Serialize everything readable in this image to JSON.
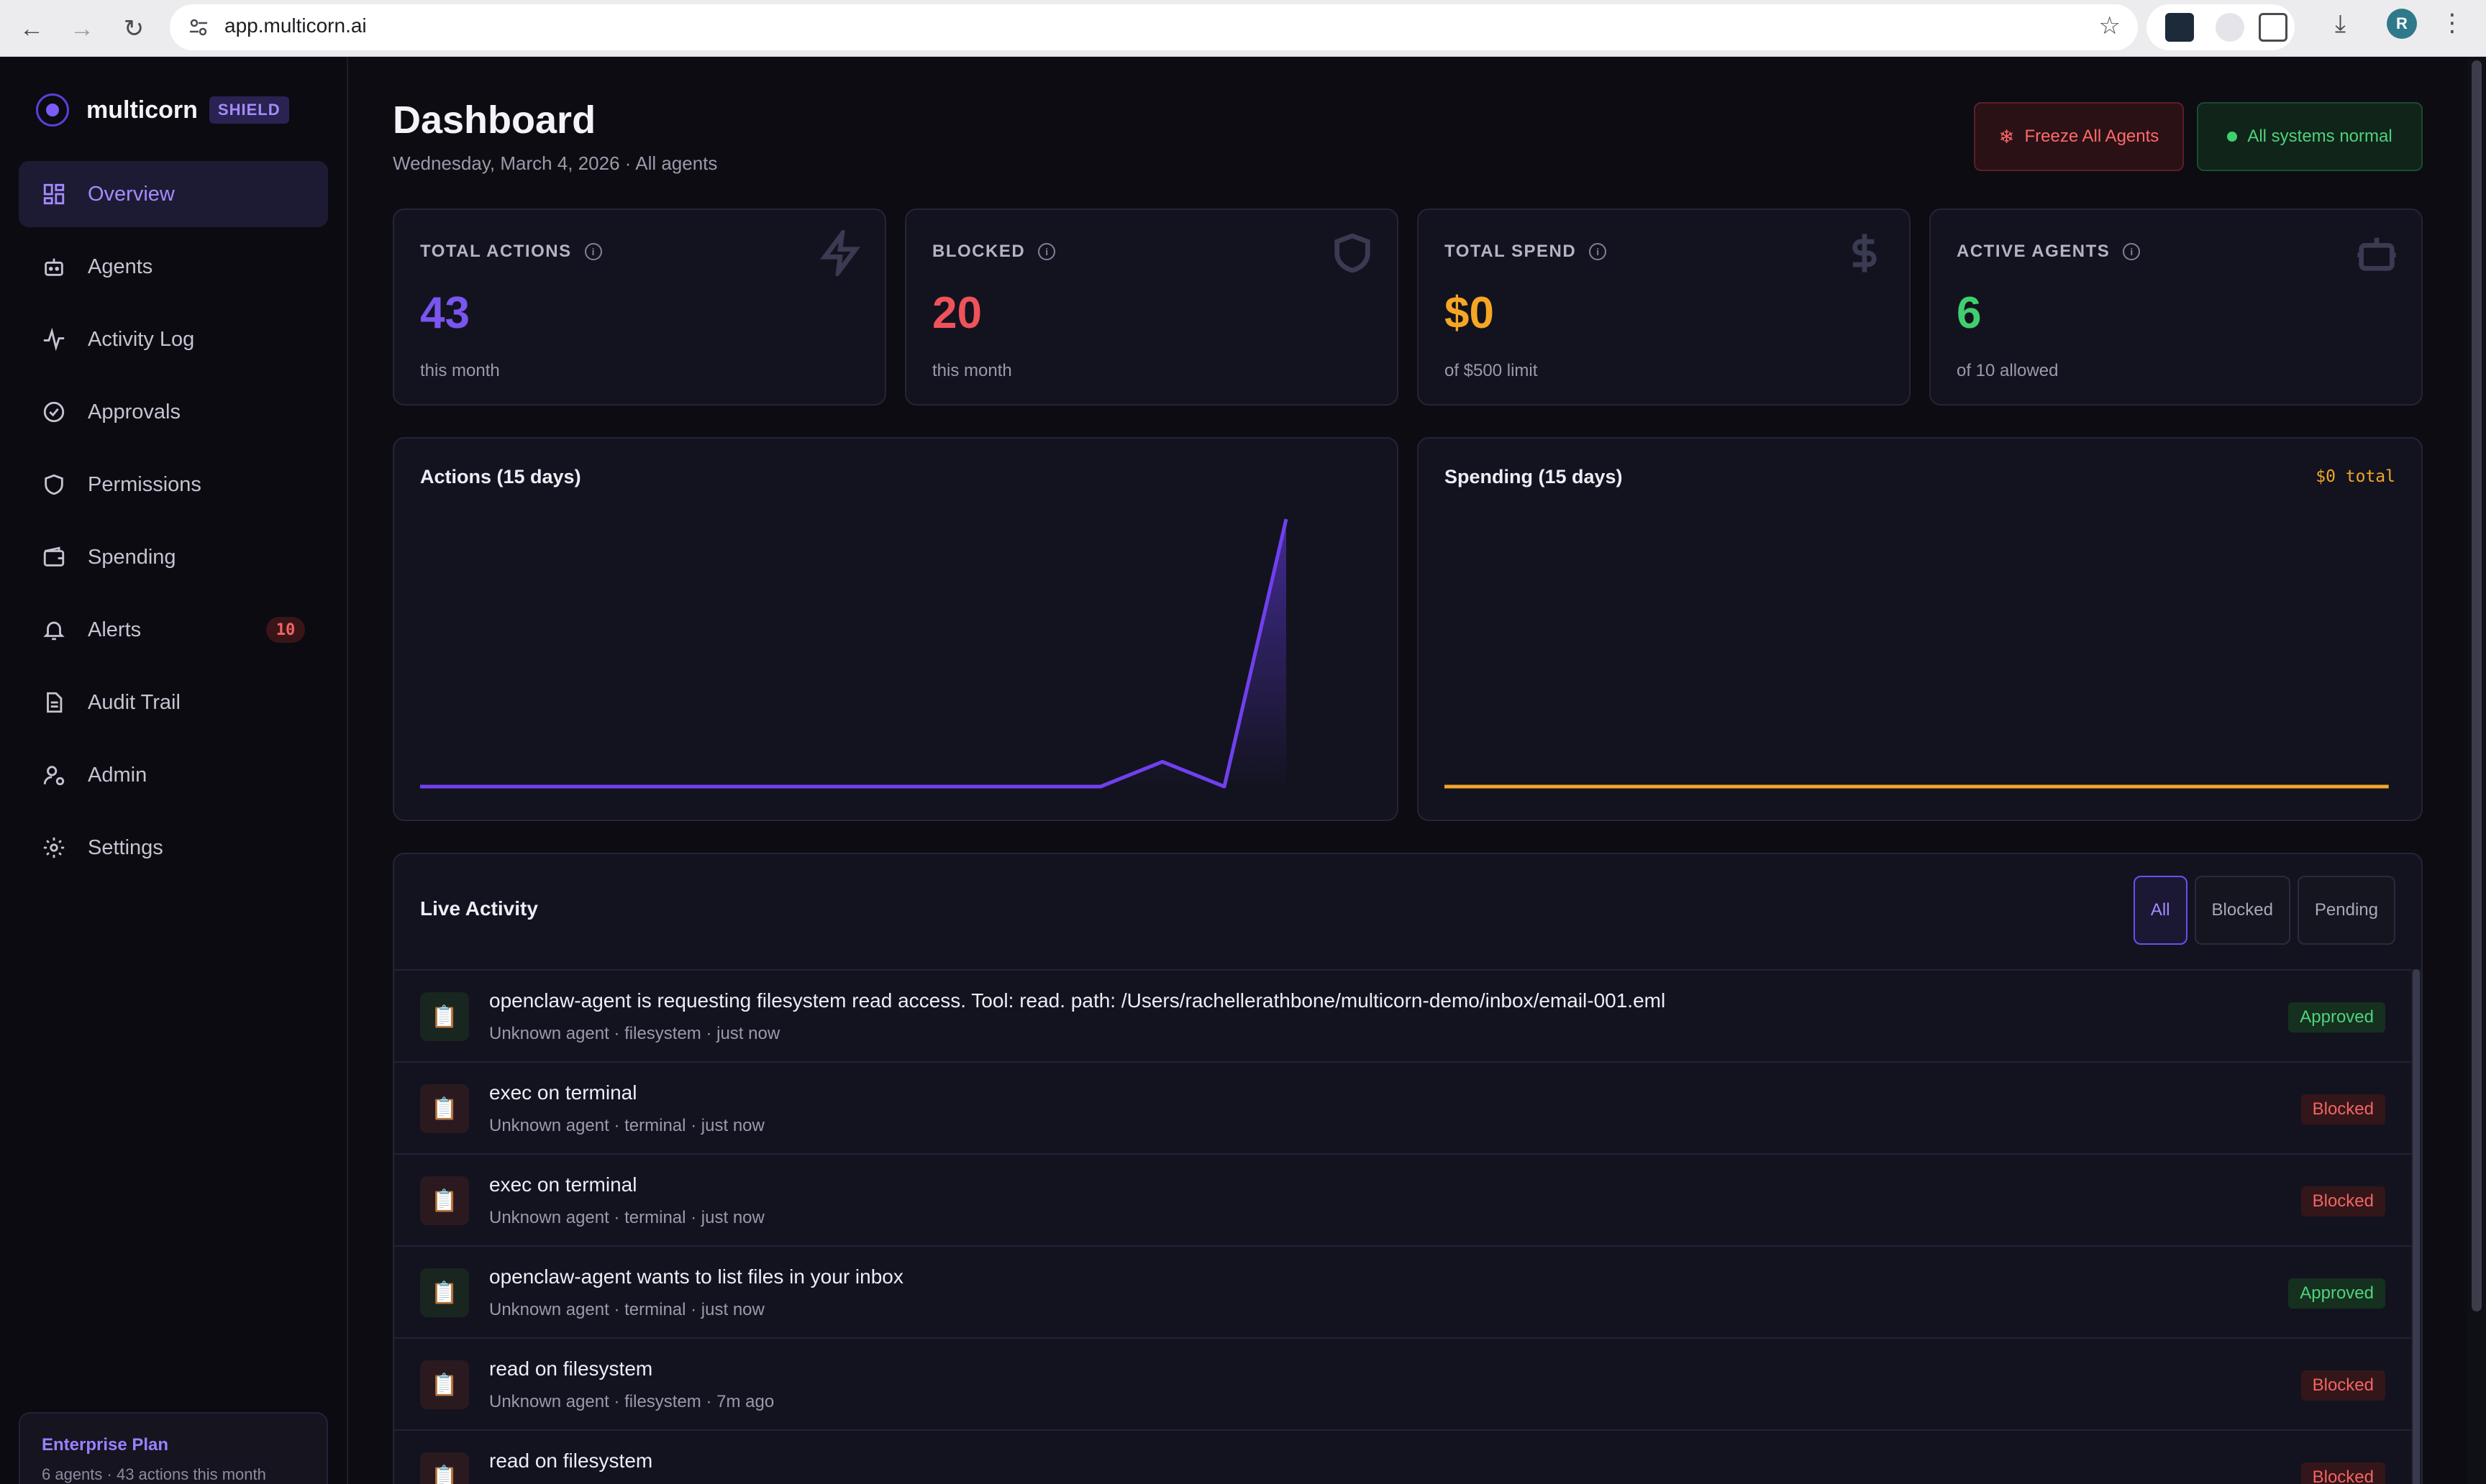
{
  "browser": {
    "url": "app.multicorn.ai",
    "profile_initial": "R"
  },
  "brand": {
    "name": "multicorn",
    "badge": "SHIELD"
  },
  "sidebar": {
    "items": [
      {
        "label": "Overview",
        "icon": "grid-icon",
        "active": true
      },
      {
        "label": "Agents",
        "icon": "robot-icon"
      },
      {
        "label": "Activity Log",
        "icon": "pulse-icon"
      },
      {
        "label": "Approvals",
        "icon": "check-circle-icon"
      },
      {
        "label": "Permissions",
        "icon": "shield-icon"
      },
      {
        "label": "Spending",
        "icon": "wallet-icon"
      },
      {
        "label": "Alerts",
        "icon": "bell-icon",
        "badge": "10"
      },
      {
        "label": "Audit Trail",
        "icon": "document-icon"
      },
      {
        "label": "Admin",
        "icon": "user-gear-icon"
      },
      {
        "label": "Settings",
        "icon": "gear-icon"
      }
    ],
    "plan": {
      "title": "Enterprise Plan",
      "subtitle": "6 agents · 43 actions this month"
    }
  },
  "header": {
    "title": "Dashboard",
    "subtitle": "Wednesday, March 4, 2026 · All agents",
    "freeze_label": "Freeze All Agents",
    "status_label": "All systems normal"
  },
  "stats": [
    {
      "label": "TOTAL ACTIONS",
      "value": "43",
      "sub": "this month",
      "color": "#7a55f0",
      "icon": "lightning-icon"
    },
    {
      "label": "BLOCKED",
      "value": "20",
      "sub": "this month",
      "color": "#f0525a",
      "icon": "shield-icon"
    },
    {
      "label": "TOTAL SPEND",
      "value": "$0",
      "sub": "of $500 limit",
      "color": "#f5a623",
      "icon": "dollar-icon"
    },
    {
      "label": "ACTIVE AGENTS",
      "value": "6",
      "sub": "of 10 allowed",
      "color": "#3fcf6e",
      "icon": "robot-icon"
    }
  ],
  "charts": {
    "actions": {
      "title": "Actions (15 days)"
    },
    "spending": {
      "title": "Spending (15 days)",
      "total": "$0 total"
    }
  },
  "chart_data": [
    {
      "type": "area",
      "title": "Actions (15 days)",
      "x": [
        1,
        2,
        3,
        4,
        5,
        6,
        7,
        8,
        9,
        10,
        11,
        12,
        13,
        14,
        15
      ],
      "values": [
        0,
        0,
        0,
        0,
        0,
        0,
        0,
        0,
        0,
        0,
        0,
        0,
        4,
        0,
        43
      ],
      "color": "#7040f0"
    },
    {
      "type": "area",
      "title": "Spending (15 days)",
      "x": [
        1,
        2,
        3,
        4,
        5,
        6,
        7,
        8,
        9,
        10,
        11,
        12,
        13,
        14,
        15
      ],
      "values": [
        0,
        0,
        0,
        0,
        0,
        0,
        0,
        0,
        0,
        0,
        0,
        0,
        0,
        0,
        0
      ],
      "color": "#f0a52c"
    }
  ],
  "activity": {
    "title": "Live Activity",
    "filters": [
      "All",
      "Blocked",
      "Pending"
    ],
    "active_filter": "All",
    "rows": [
      {
        "title": "openclaw-agent is requesting filesystem read access. Tool: read. path: /Users/rachellerathbone/multicorn-demo/inbox/email-001.eml",
        "meta": "Unknown agent · filesystem · just now",
        "status": "Approved"
      },
      {
        "title": "exec on terminal",
        "meta": "Unknown agent · terminal · just now",
        "status": "Blocked"
      },
      {
        "title": "exec on terminal",
        "meta": "Unknown agent · terminal · just now",
        "status": "Blocked"
      },
      {
        "title": "openclaw-agent wants to list files in your inbox",
        "meta": "Unknown agent · terminal · just now",
        "status": "Approved"
      },
      {
        "title": "read on filesystem",
        "meta": "Unknown agent · filesystem · 7m ago",
        "status": "Blocked"
      },
      {
        "title": "read on filesystem",
        "meta": "",
        "status": "Blocked"
      }
    ]
  }
}
